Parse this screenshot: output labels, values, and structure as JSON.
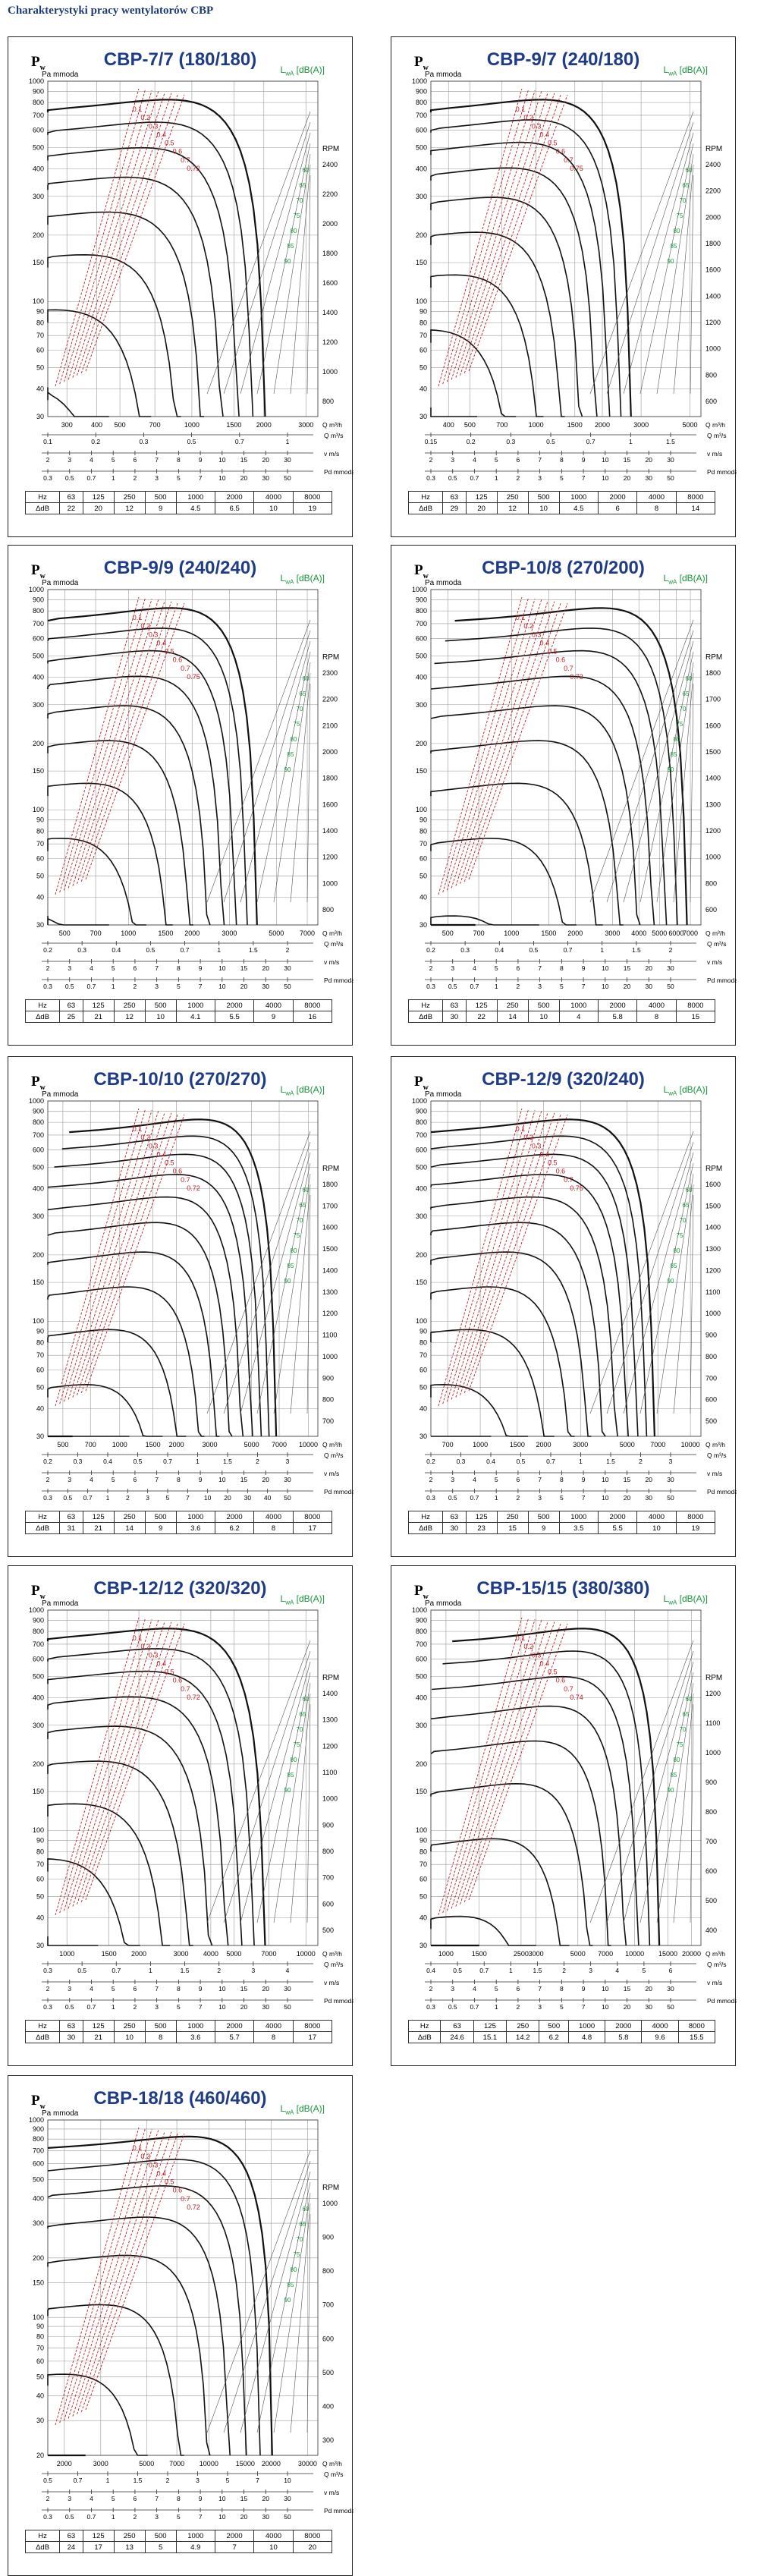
{
  "page": {
    "title": "Charakterystyki pracy wentylatorów CBP"
  },
  "labels": {
    "pw": "P",
    "pw_sub": "w",
    "pa": "Pa",
    "mmoda": "mmoda",
    "lwa": "L",
    "lwa_sub": "wA",
    "lwa_unit": "[dB(A)]",
    "rpm": "RPM",
    "hz": "Hz",
    "dldb": "ΔdB"
  },
  "colors": {
    "title_blue": "#1f3c86",
    "curve_black": "#111111",
    "efficiency_red": "#c01b22",
    "noise_green": "#17953a",
    "grid": "#9a9a9a"
  },
  "chart_data": [
    {
      "type": "line",
      "title": "CBP-7/7 (180/180)",
      "y_left_ticks": [
        30,
        40,
        50,
        60,
        70,
        80,
        90,
        100,
        150,
        200,
        300,
        400,
        500,
        600,
        700,
        800,
        900,
        1000
      ],
      "rpm_ticks": [
        800,
        1000,
        1200,
        1400,
        1600,
        1800,
        2000,
        2200,
        2400
      ],
      "q_m3h_ticks": [
        300,
        400,
        500,
        700,
        1000,
        1500,
        2000,
        3000
      ],
      "q_m3s_ticks": [
        "0.1",
        "0.2",
        "0.3",
        "0.5",
        "0.7",
        "1"
      ],
      "velocity_ticks": [
        "2",
        "3",
        "4",
        "5",
        "6",
        "7",
        "8",
        "9",
        "10",
        "15",
        "20",
        "30"
      ],
      "pd_ticks": [
        "0.3",
        "0.5",
        "0.7",
        "1",
        "2",
        "3",
        "5",
        "7",
        "10",
        "20",
        "30",
        "50"
      ],
      "axis_labels": [
        "Q m³/h",
        "Q m³/s",
        "v m/s",
        "Pd mmoda"
      ],
      "efficiency_labels": [
        "0.1",
        "0.2",
        "0.3",
        "0.4",
        "0.5",
        "0.6",
        "0.7",
        "0.72"
      ],
      "noise_labels": [
        "60",
        "65",
        "70",
        "75",
        "80",
        "85",
        "90"
      ],
      "octave_hz": [
        "63",
        "125",
        "250",
        "500",
        "1000",
        "2000",
        "4000",
        "8000"
      ],
      "delta_db": [
        "22",
        "20",
        "12",
        "9",
        "4.5",
        "6.5",
        "10",
        "19"
      ]
    },
    {
      "type": "line",
      "title": "CBP-9/7 (240/180)",
      "y_left_ticks": [
        30,
        40,
        50,
        60,
        70,
        80,
        90,
        100,
        150,
        200,
        300,
        400,
        500,
        600,
        700,
        800,
        900,
        1000
      ],
      "rpm_ticks": [
        600,
        800,
        1000,
        1200,
        1400,
        1600,
        1800,
        2000,
        2200,
        2400
      ],
      "q_m3h_ticks": [
        400,
        500,
        700,
        1000,
        1500,
        2000,
        3000,
        5000
      ],
      "q_m3s_ticks": [
        "0.15",
        "0.2",
        "0.3",
        "0.5",
        "0.7",
        "1",
        "1.5"
      ],
      "velocity_ticks": [
        "2",
        "3",
        "4",
        "5",
        "6",
        "7",
        "8",
        "9",
        "10",
        "15",
        "20",
        "30"
      ],
      "pd_ticks": [
        "0.3",
        "0.5",
        "0.7",
        "1",
        "2",
        "3",
        "5",
        "7",
        "10",
        "20",
        "30",
        "50"
      ],
      "axis_labels": [
        "Q m³/h",
        "Q m³/s",
        "v m/s",
        "Pd mmoda"
      ],
      "efficiency_labels": [
        "0.1",
        "0.2",
        "0.3",
        "0.4",
        "0.5",
        "0.6",
        "0.7",
        "0.75"
      ],
      "noise_labels": [
        "60",
        "65",
        "70",
        "75",
        "80",
        "85",
        "90"
      ],
      "octave_hz": [
        "63",
        "125",
        "250",
        "500",
        "1000",
        "2000",
        "4000",
        "8000"
      ],
      "delta_db": [
        "29",
        "20",
        "12",
        "10",
        "4.5",
        "6",
        "8",
        "14"
      ]
    },
    {
      "type": "line",
      "title": "CBP-9/9 (240/240)",
      "y_left_ticks": [
        30,
        40,
        50,
        60,
        70,
        80,
        90,
        100,
        150,
        200,
        300,
        400,
        500,
        600,
        700,
        800,
        900,
        1000
      ],
      "rpm_ticks": [
        800,
        1000,
        1200,
        1400,
        1600,
        1800,
        2000,
        2100,
        2200,
        2300
      ],
      "q_m3h_ticks": [
        500,
        700,
        1000,
        1500,
        2000,
        3000,
        5000,
        7000
      ],
      "q_m3s_ticks": [
        "0.2",
        "0.3",
        "0.4",
        "0.5",
        "0.7",
        "1",
        "1.5",
        "2"
      ],
      "velocity_ticks": [
        "2",
        "3",
        "4",
        "5",
        "6",
        "7",
        "8",
        "9",
        "10",
        "15",
        "20",
        "30"
      ],
      "pd_ticks": [
        "0.3",
        "0.5",
        "0.7",
        "1",
        "2",
        "3",
        "5",
        "7",
        "10",
        "20",
        "30",
        "50"
      ],
      "axis_labels": [
        "Q m³/h",
        "Q m³/s",
        "v m/s",
        "Pd mmoda"
      ],
      "efficiency_labels": [
        "0.1",
        "0.2",
        "0.3",
        "0.4",
        "0.5",
        "0.6",
        "0.7",
        "0.75"
      ],
      "noise_labels": [
        "60",
        "65",
        "70",
        "75",
        "80",
        "85",
        "90"
      ],
      "octave_hz": [
        "63",
        "125",
        "250",
        "500",
        "1000",
        "2000",
        "4000",
        "8000"
      ],
      "delta_db": [
        "25",
        "21",
        "12",
        "10",
        "4.1",
        "5.5",
        "9",
        "16"
      ]
    },
    {
      "type": "line",
      "title": "CBP-10/8 (270/200)",
      "y_left_ticks": [
        30,
        40,
        50,
        60,
        70,
        80,
        90,
        100,
        150,
        200,
        300,
        400,
        500,
        600,
        700,
        800,
        900,
        1000
      ],
      "rpm_ticks": [
        600,
        800,
        1000,
        1200,
        1300,
        1400,
        1500,
        1600,
        1700,
        1800
      ],
      "q_m3h_ticks": [
        500,
        700,
        1000,
        1500,
        2000,
        3000,
        4000,
        5000,
        6000,
        7000
      ],
      "q_m3s_ticks": [
        "0.2",
        "0.3",
        "0.4",
        "0.5",
        "0.7",
        "1",
        "1.5",
        "2"
      ],
      "velocity_ticks": [
        "2",
        "3",
        "4",
        "5",
        "6",
        "7",
        "8",
        "9",
        "10",
        "15",
        "20",
        "30"
      ],
      "pd_ticks": [
        "0.3",
        "0.5",
        "0.7",
        "1",
        "2",
        "3",
        "5",
        "7",
        "10",
        "20",
        "30",
        "50"
      ],
      "axis_labels": [
        "Q m³/h",
        "Q m³/s",
        "v m/s",
        "Pd mmoda"
      ],
      "efficiency_labels": [
        "0.1",
        "0.2",
        "0.3",
        "0.4",
        "0.5",
        "0.6",
        "0.7",
        "0.73"
      ],
      "noise_labels": [
        "60",
        "65",
        "70",
        "75",
        "80",
        "85",
        "90"
      ],
      "octave_hz": [
        "63",
        "125",
        "250",
        "500",
        "1000",
        "2000",
        "4000",
        "8000"
      ],
      "delta_db": [
        "30",
        "22",
        "14",
        "10",
        "4",
        "5.8",
        "8",
        "15"
      ]
    },
    {
      "type": "line",
      "title": "CBP-10/10 (270/270)",
      "y_left_ticks": [
        30,
        40,
        50,
        60,
        70,
        80,
        90,
        100,
        150,
        200,
        300,
        400,
        500,
        600,
        700,
        800,
        900,
        1000
      ],
      "rpm_ticks": [
        700,
        800,
        900,
        1000,
        1100,
        1200,
        1300,
        1400,
        1500,
        1600,
        1700,
        1800
      ],
      "q_m3h_ticks": [
        500,
        700,
        1000,
        1500,
        2000,
        3000,
        5000,
        7000,
        10000
      ],
      "q_m3s_ticks": [
        "0.2",
        "0.3",
        "0.4",
        "0.5",
        "0.7",
        "1",
        "1.5",
        "2",
        "3"
      ],
      "velocity_ticks": [
        "2",
        "3",
        "4",
        "5",
        "6",
        "7",
        "8",
        "9",
        "10",
        "15",
        "20",
        "30"
      ],
      "pd_ticks": [
        "0.3",
        "0.5",
        "0.7",
        "1",
        "2",
        "3",
        "5",
        "7",
        "10",
        "20",
        "30",
        "40",
        "50"
      ],
      "axis_labels": [
        "Q m³/h",
        "Q m³/s",
        "v m/s",
        "Pd mmoda"
      ],
      "efficiency_labels": [
        "0.1",
        "0.2",
        "0.3",
        "0.4",
        "0.5",
        "0.6",
        "0.7",
        "0.72"
      ],
      "noise_labels": [
        "60",
        "65",
        "70",
        "75",
        "80",
        "85",
        "90"
      ],
      "octave_hz": [
        "63",
        "125",
        "250",
        "500",
        "1000",
        "2000",
        "4000",
        "8000"
      ],
      "delta_db": [
        "31",
        "21",
        "14",
        "9",
        "3.6",
        "6.2",
        "8",
        "17"
      ]
    },
    {
      "type": "line",
      "title": "CBP-12/9 (320/240)",
      "y_left_ticks": [
        30,
        40,
        50,
        60,
        70,
        80,
        90,
        100,
        150,
        200,
        300,
        400,
        500,
        600,
        700,
        800,
        900,
        1000
      ],
      "rpm_ticks": [
        500,
        600,
        700,
        800,
        900,
        1000,
        1100,
        1200,
        1300,
        1400,
        1500,
        1600
      ],
      "q_m3h_ticks": [
        700,
        1000,
        1500,
        2000,
        3000,
        5000,
        7000,
        10000
      ],
      "q_m3s_ticks": [
        "0.2",
        "0.3",
        "0.4",
        "0.5",
        "0.7",
        "1",
        "1.5",
        "2",
        "3"
      ],
      "velocity_ticks": [
        "2",
        "3",
        "4",
        "5",
        "6",
        "7",
        "8",
        "9",
        "10",
        "15",
        "20",
        "30"
      ],
      "pd_ticks": [
        "0.3",
        "0.5",
        "0.7",
        "1",
        "2",
        "3",
        "5",
        "7",
        "10",
        "20",
        "30",
        "50"
      ],
      "axis_labels": [
        "Q m³/h",
        "Q m³/s",
        "v m/s",
        "Pd mmoda"
      ],
      "efficiency_labels": [
        "0.1",
        "0.2",
        "0.3",
        "0.4",
        "0.5",
        "0.6",
        "0.7",
        "0.75"
      ],
      "noise_labels": [
        "60",
        "65",
        "70",
        "75",
        "80",
        "85",
        "90"
      ],
      "octave_hz": [
        "63",
        "125",
        "250",
        "500",
        "1000",
        "2000",
        "4000",
        "8000"
      ],
      "delta_db": [
        "30",
        "23",
        "15",
        "9",
        "3.5",
        "5.5",
        "10",
        "19"
      ]
    },
    {
      "type": "line",
      "title": "CBP-12/12 (320/320)",
      "y_left_ticks": [
        30,
        40,
        50,
        60,
        70,
        80,
        90,
        100,
        150,
        200,
        300,
        400,
        500,
        600,
        700,
        800,
        900,
        1000
      ],
      "rpm_ticks": [
        500,
        600,
        700,
        800,
        900,
        1000,
        1100,
        1200,
        1300,
        1400
      ],
      "q_m3h_ticks": [
        1000,
        1500,
        2000,
        3000,
        4000,
        5000,
        7000,
        10000
      ],
      "q_m3s_ticks": [
        "0.3",
        "0.5",
        "0.7",
        "1",
        "1.5",
        "2",
        "3",
        "4"
      ],
      "velocity_ticks": [
        "2",
        "3",
        "4",
        "5",
        "6",
        "7",
        "8",
        "9",
        "10",
        "15",
        "20",
        "30"
      ],
      "pd_ticks": [
        "0.3",
        "0.5",
        "0.7",
        "1",
        "2",
        "3",
        "5",
        "7",
        "10",
        "20",
        "30",
        "50"
      ],
      "axis_labels": [
        "Q m³/h",
        "Q m³/s",
        "v m/s",
        "Pd mmoda"
      ],
      "efficiency_labels": [
        "0.1",
        "0.2",
        "0.3",
        "0.4",
        "0.5",
        "0.6",
        "0.7",
        "0.72"
      ],
      "noise_labels": [
        "60",
        "65",
        "70",
        "75",
        "80",
        "85",
        "90"
      ],
      "octave_hz": [
        "63",
        "125",
        "250",
        "500",
        "1000",
        "2000",
        "4000",
        "8000"
      ],
      "delta_db": [
        "30",
        "21",
        "10",
        "8",
        "3.6",
        "5.7",
        "8",
        "17"
      ]
    },
    {
      "type": "line",
      "title": "CBP-15/15 (380/380)",
      "y_left_ticks": [
        30,
        40,
        50,
        60,
        70,
        80,
        90,
        100,
        150,
        200,
        300,
        400,
        500,
        600,
        700,
        800,
        900,
        1000
      ],
      "rpm_ticks": [
        400,
        500,
        600,
        700,
        800,
        900,
        1000,
        1100,
        1200
      ],
      "q_m3h_ticks": [
        1000,
        1500,
        2500,
        3000,
        5000,
        7000,
        10000,
        15000,
        20000
      ],
      "q_m3s_ticks": [
        "0.4",
        "0.5",
        "0.7",
        "1",
        "1.5",
        "2",
        "3",
        "4",
        "5",
        "6"
      ],
      "velocity_ticks": [
        "2",
        "3",
        "4",
        "5",
        "6",
        "7",
        "8",
        "9",
        "10",
        "15",
        "20",
        "30"
      ],
      "pd_ticks": [
        "0.3",
        "0.5",
        "0.7",
        "1",
        "2",
        "3",
        "5",
        "7",
        "10",
        "20",
        "30",
        "50"
      ],
      "axis_labels": [
        "Q m³/h",
        "Q m³/s",
        "v m/s",
        "Pd mmoda"
      ],
      "efficiency_labels": [
        "0.1",
        "0.2",
        "0.3",
        "0.4",
        "0.5",
        "0.6",
        "0.7",
        "0.74"
      ],
      "noise_labels": [
        "60",
        "65",
        "70",
        "75",
        "80",
        "85",
        "90"
      ],
      "octave_hz": [
        "63",
        "125",
        "250",
        "500",
        "1000",
        "2000",
        "4000",
        "8000"
      ],
      "delta_db": [
        "24.6",
        "15.1",
        "14.2",
        "6.2",
        "4.8",
        "5.8",
        "9.6",
        "15.5"
      ]
    },
    {
      "type": "line",
      "title": "CBP-18/18 (460/460)",
      "y_left_ticks": [
        20,
        30,
        40,
        50,
        60,
        70,
        80,
        90,
        100,
        150,
        200,
        300,
        400,
        500,
        600,
        700,
        800,
        900,
        1000
      ],
      "rpm_ticks": [
        300,
        400,
        500,
        600,
        700,
        800,
        900,
        1000
      ],
      "q_m3h_ticks": [
        2000,
        3000,
        5000,
        7000,
        10000,
        15000,
        20000,
        30000
      ],
      "q_m3s_ticks": [
        "0.5",
        "0.7",
        "1",
        "1.5",
        "2",
        "3",
        "5",
        "7",
        "10"
      ],
      "velocity_ticks": [
        "2",
        "3",
        "4",
        "5",
        "6",
        "7",
        "8",
        "9",
        "10",
        "15",
        "20",
        "30"
      ],
      "pd_ticks": [
        "0.3",
        "0.5",
        "0.7",
        "1",
        "2",
        "3",
        "5",
        "7",
        "10",
        "20",
        "30",
        "50"
      ],
      "axis_labels": [
        "Q m³/h",
        "Q m³/s",
        "v m/s",
        "Pd mmoda"
      ],
      "efficiency_labels": [
        "0.1",
        "0.2",
        "0.3",
        "0.4",
        "0.5",
        "0.6",
        "0.7",
        "0.72"
      ],
      "noise_labels": [
        "60",
        "65",
        "70",
        "75",
        "80",
        "85",
        "90"
      ],
      "octave_hz": [
        "63",
        "125",
        "250",
        "500",
        "1000",
        "2000",
        "4000",
        "8000"
      ],
      "delta_db": [
        "24",
        "17",
        "13",
        "5",
        "4.9",
        "7",
        "10",
        "20"
      ]
    }
  ]
}
